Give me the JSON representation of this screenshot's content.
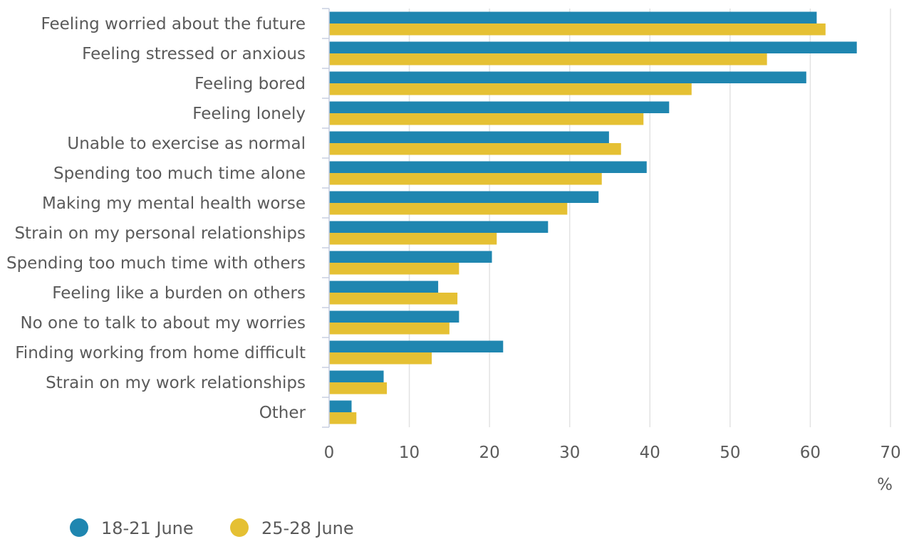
{
  "chart_data": {
    "type": "bar",
    "orientation": "horizontal",
    "categories": [
      "Feeling worried about the future",
      "Feeling stressed or anxious",
      "Feeling bored",
      "Feeling lonely",
      "Unable to exercise as normal",
      "Spending too much time alone",
      "Making my mental health worse",
      "Strain on my personal relationships",
      "Spending too much time with others",
      "Feeling like a burden on others",
      "No one to talk to about my worries",
      "Finding working from home difficult",
      "Strain on my work relationships",
      "Other"
    ],
    "series": [
      {
        "name": "18-21 June",
        "color": "#1f86b0",
        "values": [
          60.8,
          65.8,
          59.5,
          42.4,
          34.9,
          39.6,
          33.6,
          27.3,
          20.3,
          13.6,
          16.2,
          21.7,
          6.8,
          2.8
        ]
      },
      {
        "name": "25-28 June",
        "color": "#e5c033",
        "values": [
          61.9,
          54.6,
          45.2,
          39.2,
          36.4,
          34.0,
          29.7,
          20.9,
          16.2,
          16.0,
          15.0,
          12.8,
          7.2,
          3.4
        ]
      }
    ],
    "xlim": [
      0,
      70
    ],
    "xticks": [
      "0",
      "10",
      "20",
      "30",
      "40",
      "50",
      "60",
      "70"
    ],
    "xlabel": "%",
    "grid": true,
    "legend_position": "bottom-left"
  }
}
